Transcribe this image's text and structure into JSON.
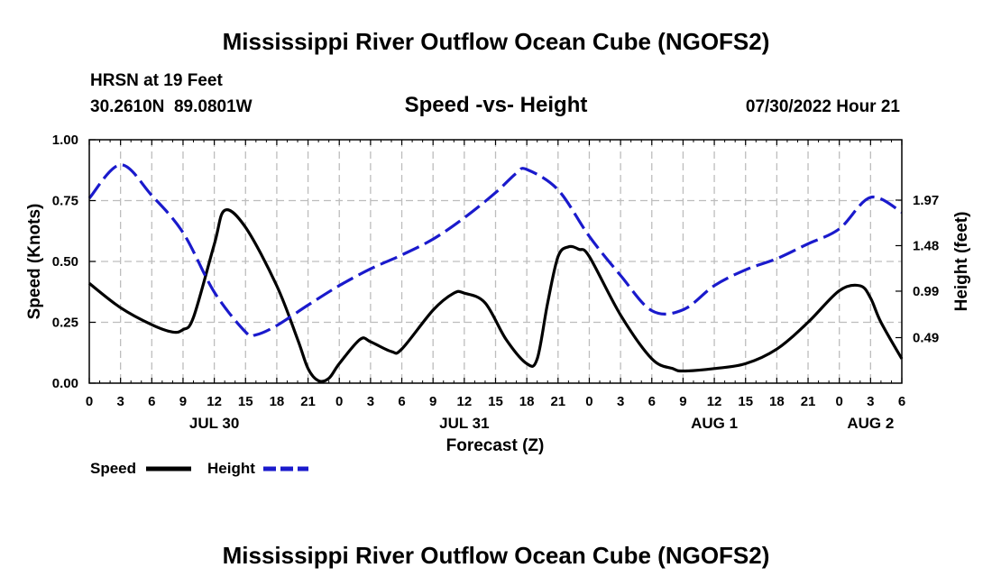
{
  "page": {
    "title": "Mississippi River Outflow Ocean Cube (NGOFS2)",
    "title_repeat": "Mississippi River Outflow Ocean Cube (NGOFS2)",
    "station_line": "HRSN at 19 Feet",
    "coords_line": "30.2610N  89.0801W",
    "subtitle": "Speed -vs- Height",
    "timestamp": "07/30/2022 Hour 21"
  },
  "chart_data": {
    "type": "line",
    "title": "Speed -vs- Height",
    "xlabel": "Forecast (Z)",
    "ylabel": "Speed (Knots)",
    "y2label": "Height (feet)",
    "x_range_hours": [
      0,
      78
    ],
    "x_tick_step_hours": 3,
    "x_tick_labels": [
      "0",
      "3",
      "6",
      "9",
      "12",
      "15",
      "18",
      "21",
      "0",
      "3",
      "6",
      "9",
      "12",
      "15",
      "18",
      "21",
      "0",
      "3",
      "6",
      "9",
      "12",
      "15",
      "18",
      "21",
      "0",
      "3",
      "6"
    ],
    "date_labels": [
      {
        "label": "JUL 30",
        "hour": 12
      },
      {
        "label": "JUL 31",
        "hour": 36
      },
      {
        "label": "AUG 1",
        "hour": 60
      },
      {
        "label": "AUG 2",
        "hour": 75
      }
    ],
    "ylim": [
      0,
      1
    ],
    "y_ticks": [
      0.0,
      0.25,
      0.5,
      0.75,
      1.0
    ],
    "y_tick_labels": [
      "0.00",
      "0.25",
      "0.50",
      "0.75",
      "1.00"
    ],
    "y2lim": [
      0,
      2.62
    ],
    "y2_ticks": [
      0.49,
      0.99,
      1.48,
      1.97
    ],
    "y2_tick_labels": [
      "0.49",
      "0.99",
      "1.48",
      "1.97"
    ],
    "grid": true,
    "legend": [
      {
        "label": "Speed",
        "color": "#000000",
        "style": "solid"
      },
      {
        "label": "Height",
        "color": "#1a1acc",
        "style": "dashed"
      }
    ],
    "series": [
      {
        "name": "Speed",
        "axis": "left",
        "color": "#000000",
        "x": [
          0,
          3,
          6,
          8,
          9,
          10,
          12,
          13,
          15,
          18,
          20,
          21,
          22,
          23,
          24,
          26,
          27,
          29,
          30,
          33,
          35,
          36,
          38,
          40,
          42,
          43,
          44,
          45,
          46,
          47,
          48,
          51,
          54,
          56,
          57,
          60,
          63,
          66,
          69,
          72,
          74,
          75,
          76,
          78
        ],
        "values": [
          0.41,
          0.31,
          0.24,
          0.21,
          0.22,
          0.27,
          0.57,
          0.71,
          0.64,
          0.4,
          0.18,
          0.06,
          0.01,
          0.02,
          0.08,
          0.18,
          0.17,
          0.13,
          0.14,
          0.3,
          0.37,
          0.37,
          0.33,
          0.18,
          0.08,
          0.1,
          0.33,
          0.52,
          0.56,
          0.55,
          0.52,
          0.28,
          0.1,
          0.06,
          0.05,
          0.06,
          0.08,
          0.14,
          0.25,
          0.38,
          0.4,
          0.35,
          0.25,
          0.1
        ]
      },
      {
        "name": "Height",
        "axis": "right",
        "color": "#1a1acc",
        "x": [
          0,
          3,
          6,
          9,
          12,
          15,
          16,
          18,
          21,
          24,
          27,
          30,
          33,
          36,
          39,
          41,
          42,
          45,
          48,
          51,
          54,
          57,
          60,
          63,
          66,
          69,
          72,
          75,
          78
        ],
        "values": [
          1.99,
          2.35,
          2.02,
          1.62,
          0.98,
          0.55,
          0.52,
          0.62,
          0.84,
          1.05,
          1.23,
          1.38,
          1.55,
          1.78,
          2.05,
          2.26,
          2.3,
          2.08,
          1.58,
          1.16,
          0.78,
          0.79,
          1.05,
          1.22,
          1.34,
          1.5,
          1.66,
          2.0,
          1.84
        ]
      }
    ]
  }
}
